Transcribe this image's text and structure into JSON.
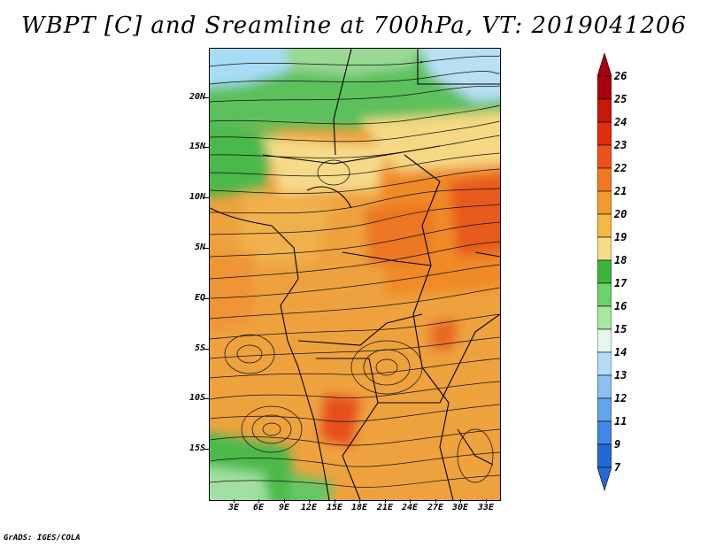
{
  "title": "WBPT [C] and Sreamline at 700hPa, VT: 2019041206",
  "footer": "GrADS: IGES/COLA",
  "map": {
    "lat_labels": [
      "20N",
      "15N",
      "10N",
      "5N",
      "EQ",
      "5S",
      "10S",
      "15S"
    ],
    "lon_labels": [
      "3E",
      "6E",
      "9E",
      "12E",
      "15E",
      "18E",
      "21E",
      "24E",
      "27E",
      "30E",
      "33E"
    ],
    "lat_range": [
      -19.5,
      24
    ],
    "lon_range": [
      0,
      34.5
    ]
  },
  "colorbar": {
    "labels": [
      "26",
      "25",
      "24",
      "23",
      "22",
      "21",
      "20",
      "19",
      "18",
      "17",
      "16",
      "15",
      "14",
      "13",
      "12",
      "11",
      "9",
      "7"
    ],
    "colors": [
      "#a8000c",
      "#c81808",
      "#e22c10",
      "#f0501c",
      "#f47822",
      "#f49a30",
      "#f4b848",
      "#f8dc8c",
      "#3cb43c",
      "#6cd26c",
      "#a8e6a0",
      "#e4f8ec",
      "#b4dcf8",
      "#8cc0f0",
      "#64a4ec",
      "#4088e8",
      "#2468d8"
    ],
    "top_arrow_color": "#a8000c",
    "bottom_arrow_color": "#2468d8"
  }
}
